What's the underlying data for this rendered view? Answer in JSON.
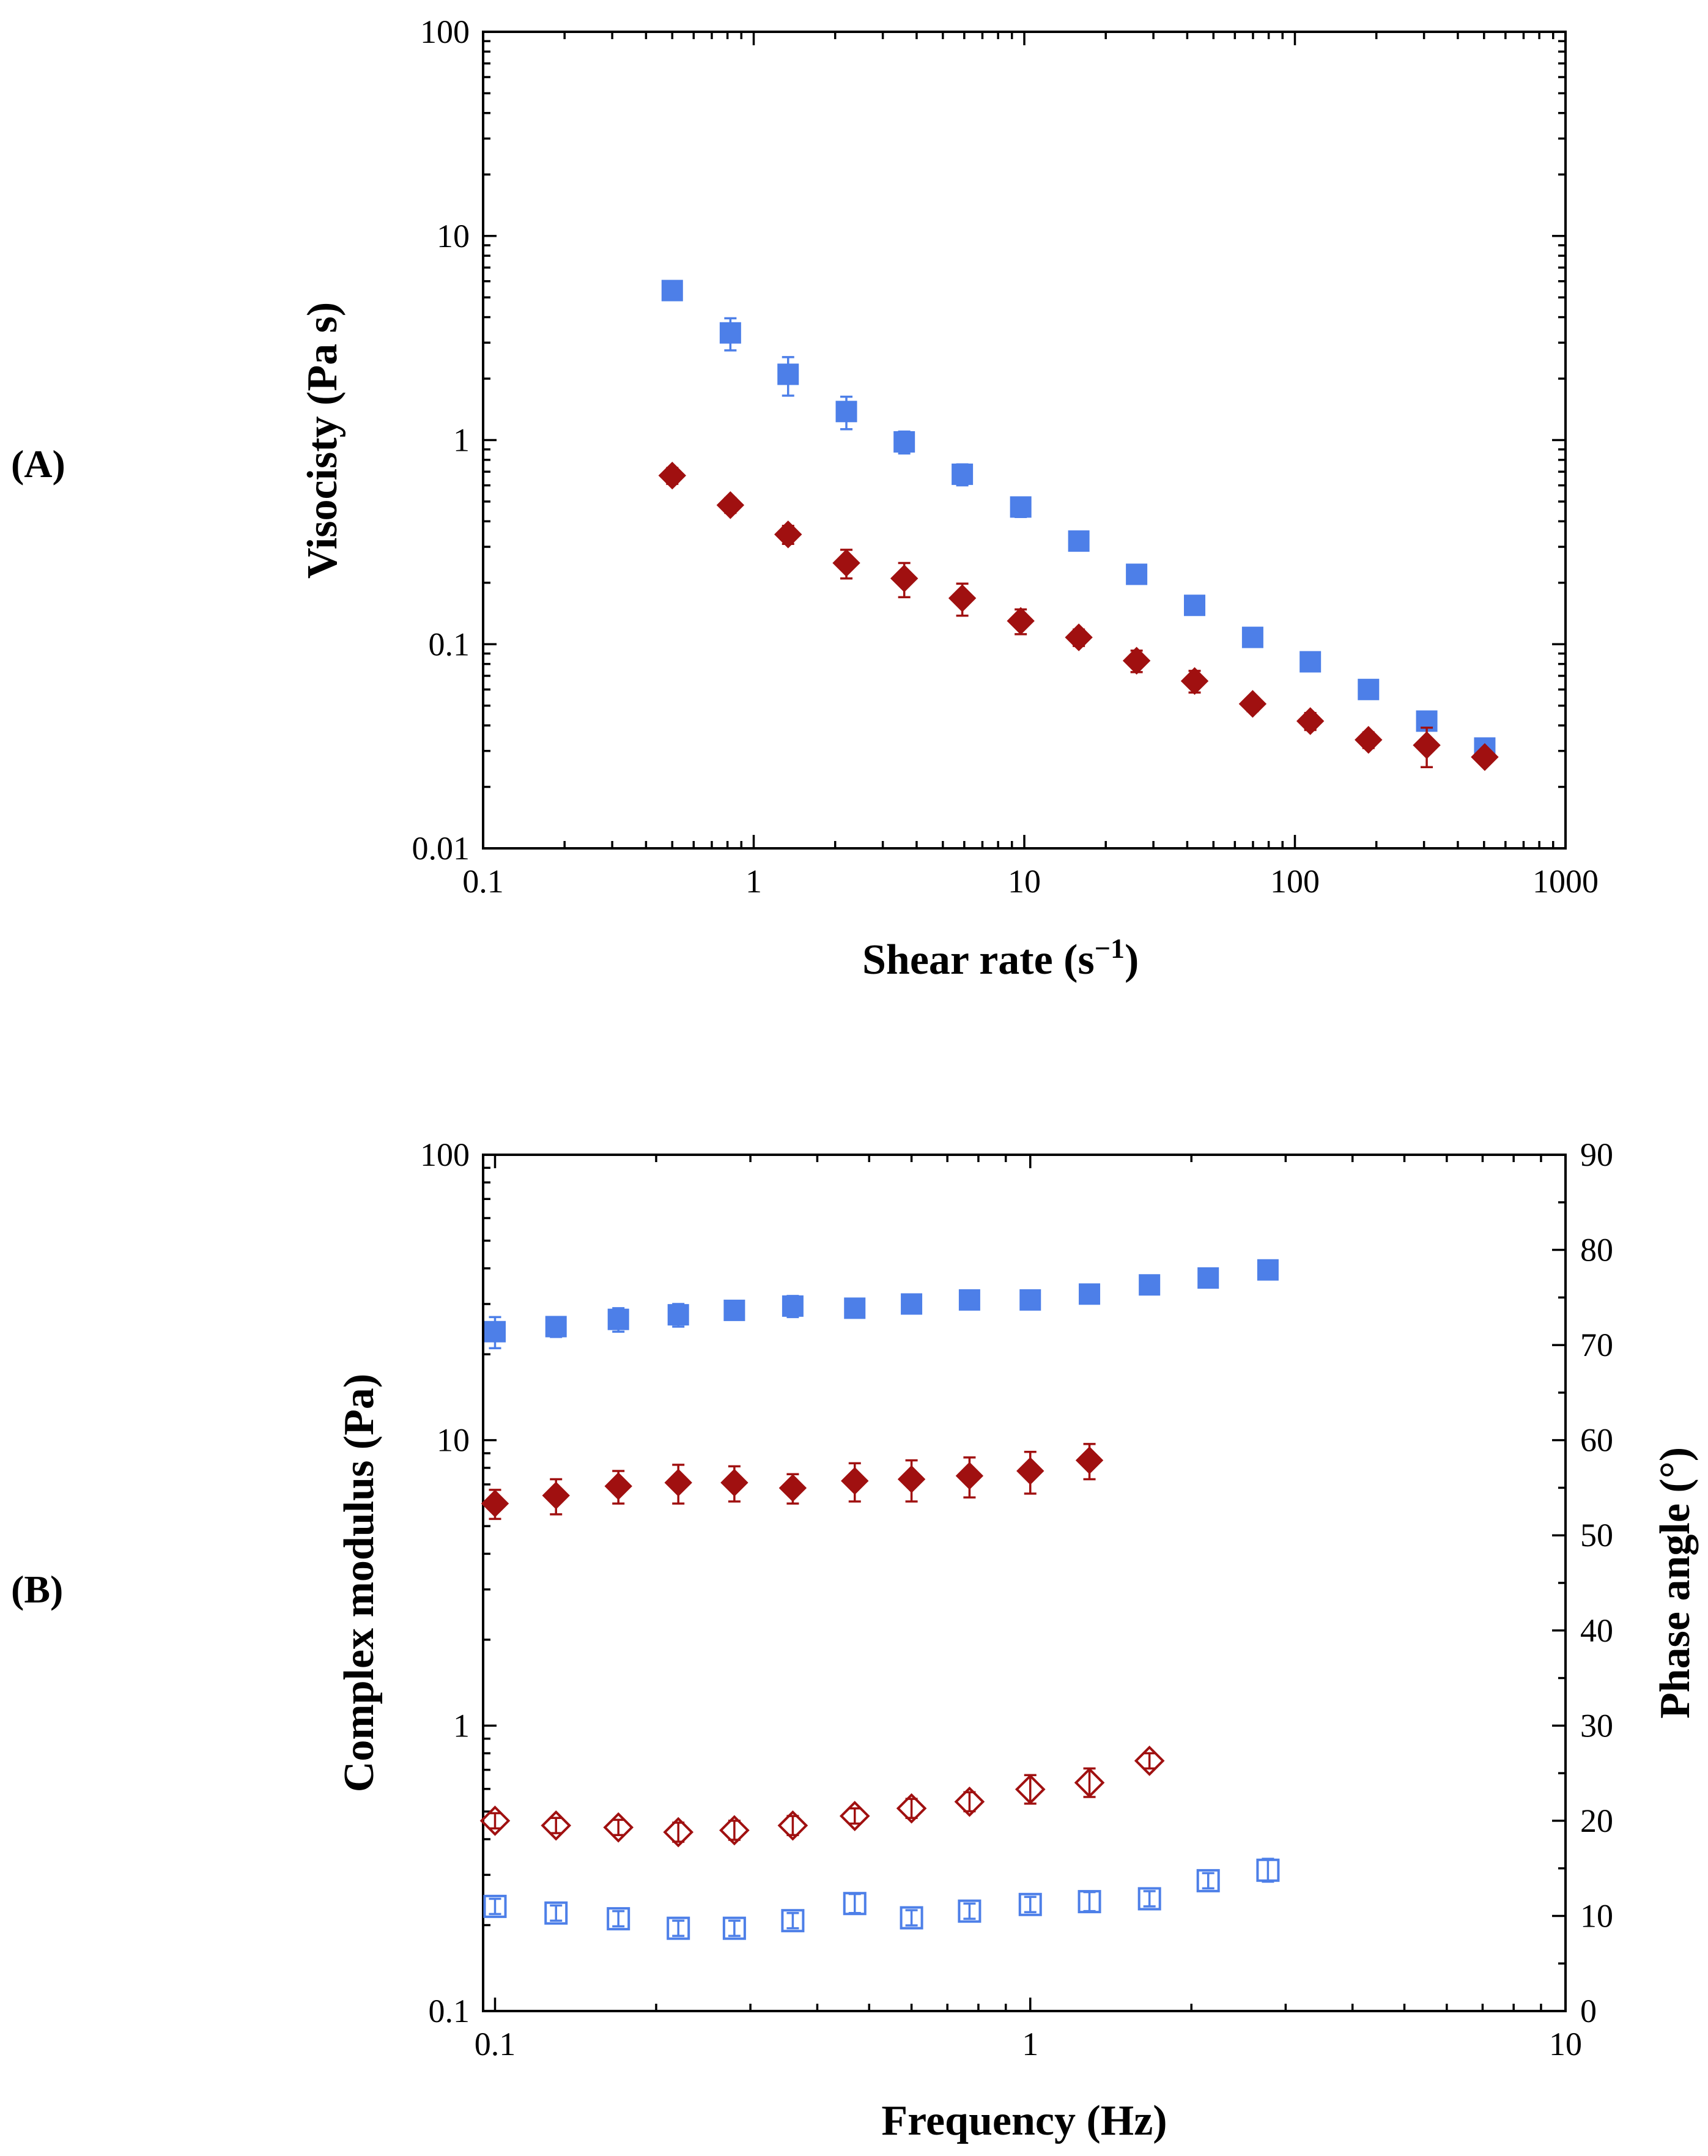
{
  "chart_data": [
    {
      "panel_label": "(A)",
      "type": "scatter",
      "xscale": "log",
      "yscale": "log",
      "xlabel": "Shear rate (s",
      "xlabel_sup": "−1",
      "xlabel_close": ")",
      "ylabel": "Visocisty (Pa s)",
      "xlim": [
        0.1,
        1000
      ],
      "ylim": [
        0.01,
        100
      ],
      "xticks": [
        0.1,
        1,
        10,
        100,
        1000
      ],
      "xtick_labels": [
        "0.1",
        "1",
        "10",
        "100",
        "1000"
      ],
      "yticks": [
        0.01,
        0.1,
        1,
        10,
        100
      ],
      "ytick_labels": [
        "0.01",
        "0.1",
        "1",
        "10",
        "100"
      ],
      "grid": false,
      "series": [
        {
          "name": "blue squares",
          "marker": "square-filled",
          "color": "#4d7fe8",
          "points": [
            {
              "x": 0.5,
              "y": 5.4,
              "err": 0.35
            },
            {
              "x": 0.82,
              "y": 3.35,
              "err": 0.6
            },
            {
              "x": 1.34,
              "y": 2.1,
              "err": 0.45
            },
            {
              "x": 2.2,
              "y": 1.38,
              "err": 0.25
            },
            {
              "x": 3.6,
              "y": 0.98,
              "err": 0.12
            },
            {
              "x": 5.9,
              "y": 0.68,
              "err": 0.08
            },
            {
              "x": 9.7,
              "y": 0.47,
              "err": 0.05
            },
            {
              "x": 15.9,
              "y": 0.32,
              "err": 0.03
            },
            {
              "x": 26,
              "y": 0.22,
              "err": 0.012
            },
            {
              "x": 42.6,
              "y": 0.155,
              "err": 0.008
            },
            {
              "x": 69.8,
              "y": 0.108,
              "err": 0.006
            },
            {
              "x": 114,
              "y": 0.082,
              "err": 0.005
            },
            {
              "x": 187,
              "y": 0.06,
              "err": 0.004
            },
            {
              "x": 307,
              "y": 0.042,
              "err": 0.003
            },
            {
              "x": 503,
              "y": 0.031,
              "err": 0.002
            }
          ]
        },
        {
          "name": "red diamonds",
          "marker": "diamond-filled",
          "color": "#a01010",
          "points": [
            {
              "x": 0.5,
              "y": 0.67,
              "err": 0.06
            },
            {
              "x": 0.82,
              "y": 0.48,
              "err": 0.04
            },
            {
              "x": 1.34,
              "y": 0.345,
              "err": 0.035
            },
            {
              "x": 2.2,
              "y": 0.25,
              "err": 0.04
            },
            {
              "x": 3.6,
              "y": 0.21,
              "err": 0.04
            },
            {
              "x": 5.9,
              "y": 0.168,
              "err": 0.03
            },
            {
              "x": 9.7,
              "y": 0.13,
              "err": 0.018
            },
            {
              "x": 15.9,
              "y": 0.108,
              "err": 0.01
            },
            {
              "x": 26,
              "y": 0.083,
              "err": 0.01
            },
            {
              "x": 42.6,
              "y": 0.066,
              "err": 0.008
            },
            {
              "x": 69.8,
              "y": 0.051,
              "err": 0.004
            },
            {
              "x": 114,
              "y": 0.042,
              "err": 0.004
            },
            {
              "x": 187,
              "y": 0.034,
              "err": 0.003
            },
            {
              "x": 307,
              "y": 0.032,
              "err": 0.007
            },
            {
              "x": 503,
              "y": 0.028,
              "err": 0.002
            }
          ]
        }
      ]
    },
    {
      "panel_label": "(B)",
      "type": "scatter",
      "xscale": "log",
      "yscale": "log",
      "xlabel": "Frequency (Hz)",
      "ylabel": "Complex modulus (Pa)",
      "y2label": "Phase angle (°)",
      "xlim": [
        0.095,
        10
      ],
      "ylim": [
        0.1,
        100
      ],
      "y2lim": [
        0,
        90
      ],
      "xticks": [
        0.1,
        1,
        10
      ],
      "xtick_labels": [
        "0.1",
        "1",
        "10"
      ],
      "yticks": [
        0.1,
        1,
        10,
        100
      ],
      "ytick_labels": [
        "0.1",
        "1",
        "10",
        "100"
      ],
      "y2ticks": [
        0,
        10,
        20,
        30,
        40,
        50,
        60,
        70,
        80,
        90
      ],
      "y2tick_labels": [
        "0",
        "10",
        "20",
        "30",
        "40",
        "50",
        "60",
        "70",
        "80",
        "90"
      ],
      "grid": false,
      "series": [
        {
          "name": "complex modulus, blue",
          "axis": "left",
          "marker": "square-filled",
          "color": "#4d7fe8",
          "points": [
            {
              "x": 0.1,
              "y": 24,
              "err": 3
            },
            {
              "x": 0.13,
              "y": 25,
              "err": 2
            },
            {
              "x": 0.17,
              "y": 26.5,
              "err": 2.5
            },
            {
              "x": 0.22,
              "y": 27.5,
              "err": 2.5
            },
            {
              "x": 0.28,
              "y": 28.5,
              "err": 2
            },
            {
              "x": 0.36,
              "y": 29.5,
              "err": 2.5
            },
            {
              "x": 0.47,
              "y": 29,
              "err": 1.5
            },
            {
              "x": 0.6,
              "y": 30,
              "err": 2
            },
            {
              "x": 0.77,
              "y": 31,
              "err": 2
            },
            {
              "x": 1.0,
              "y": 31,
              "err": 2
            },
            {
              "x": 1.29,
              "y": 32.5,
              "err": 1
            },
            {
              "x": 1.67,
              "y": 35,
              "err": 1
            },
            {
              "x": 2.15,
              "y": 37,
              "err": 1
            },
            {
              "x": 2.78,
              "y": 39.5,
              "err": 1
            }
          ]
        },
        {
          "name": "complex modulus, red",
          "axis": "left",
          "marker": "diamond-filled",
          "color": "#a01010",
          "points": [
            {
              "x": 0.1,
              "y": 6.0,
              "err": 0.7
            },
            {
              "x": 0.13,
              "y": 6.4,
              "err": 0.9
            },
            {
              "x": 0.17,
              "y": 6.9,
              "err": 0.9
            },
            {
              "x": 0.22,
              "y": 7.1,
              "err": 1.1
            },
            {
              "x": 0.28,
              "y": 7.1,
              "err": 1.0
            },
            {
              "x": 0.36,
              "y": 6.8,
              "err": 0.8
            },
            {
              "x": 0.47,
              "y": 7.2,
              "err": 1.1
            },
            {
              "x": 0.6,
              "y": 7.3,
              "err": 1.2
            },
            {
              "x": 0.77,
              "y": 7.5,
              "err": 1.2
            },
            {
              "x": 1.0,
              "y": 7.8,
              "err": 1.3
            },
            {
              "x": 1.29,
              "y": 8.5,
              "err": 1.2
            }
          ]
        },
        {
          "name": "phase angle, red",
          "axis": "right",
          "marker": "diamond-open",
          "color": "#a01010",
          "points": [
            {
              "x": 0.1,
              "y": 20.0,
              "err": 0.8
            },
            {
              "x": 0.13,
              "y": 19.5,
              "err": 0.8
            },
            {
              "x": 0.17,
              "y": 19.3,
              "err": 0.8
            },
            {
              "x": 0.22,
              "y": 18.8,
              "err": 1.0
            },
            {
              "x": 0.28,
              "y": 19.0,
              "err": 1.0
            },
            {
              "x": 0.36,
              "y": 19.5,
              "err": 1.0
            },
            {
              "x": 0.47,
              "y": 20.5,
              "err": 0.8
            },
            {
              "x": 0.6,
              "y": 21.3,
              "err": 1.0
            },
            {
              "x": 0.77,
              "y": 22.0,
              "err": 1.0
            },
            {
              "x": 1.0,
              "y": 23.3,
              "err": 1.5
            },
            {
              "x": 1.29,
              "y": 24.0,
              "err": 1.5
            },
            {
              "x": 1.67,
              "y": 26.3,
              "err": 0.8
            }
          ]
        },
        {
          "name": "phase angle, blue",
          "axis": "right",
          "marker": "square-open",
          "color": "#4d7fe8",
          "points": [
            {
              "x": 0.1,
              "y": 11.0,
              "err": 0.8
            },
            {
              "x": 0.13,
              "y": 10.3,
              "err": 0.8
            },
            {
              "x": 0.17,
              "y": 9.7,
              "err": 0.8
            },
            {
              "x": 0.22,
              "y": 8.7,
              "err": 0.8
            },
            {
              "x": 0.28,
              "y": 8.7,
              "err": 0.8
            },
            {
              "x": 0.36,
              "y": 9.5,
              "err": 0.8
            },
            {
              "x": 0.47,
              "y": 11.3,
              "err": 1.0
            },
            {
              "x": 0.6,
              "y": 9.8,
              "err": 0.8
            },
            {
              "x": 0.77,
              "y": 10.5,
              "err": 0.8
            },
            {
              "x": 1.0,
              "y": 11.2,
              "err": 0.8
            },
            {
              "x": 1.29,
              "y": 11.5,
              "err": 1.0
            },
            {
              "x": 1.67,
              "y": 11.8,
              "err": 0.8
            },
            {
              "x": 2.15,
              "y": 13.7,
              "err": 0.8
            },
            {
              "x": 2.78,
              "y": 14.8,
              "err": 1.2
            }
          ]
        }
      ]
    }
  ]
}
